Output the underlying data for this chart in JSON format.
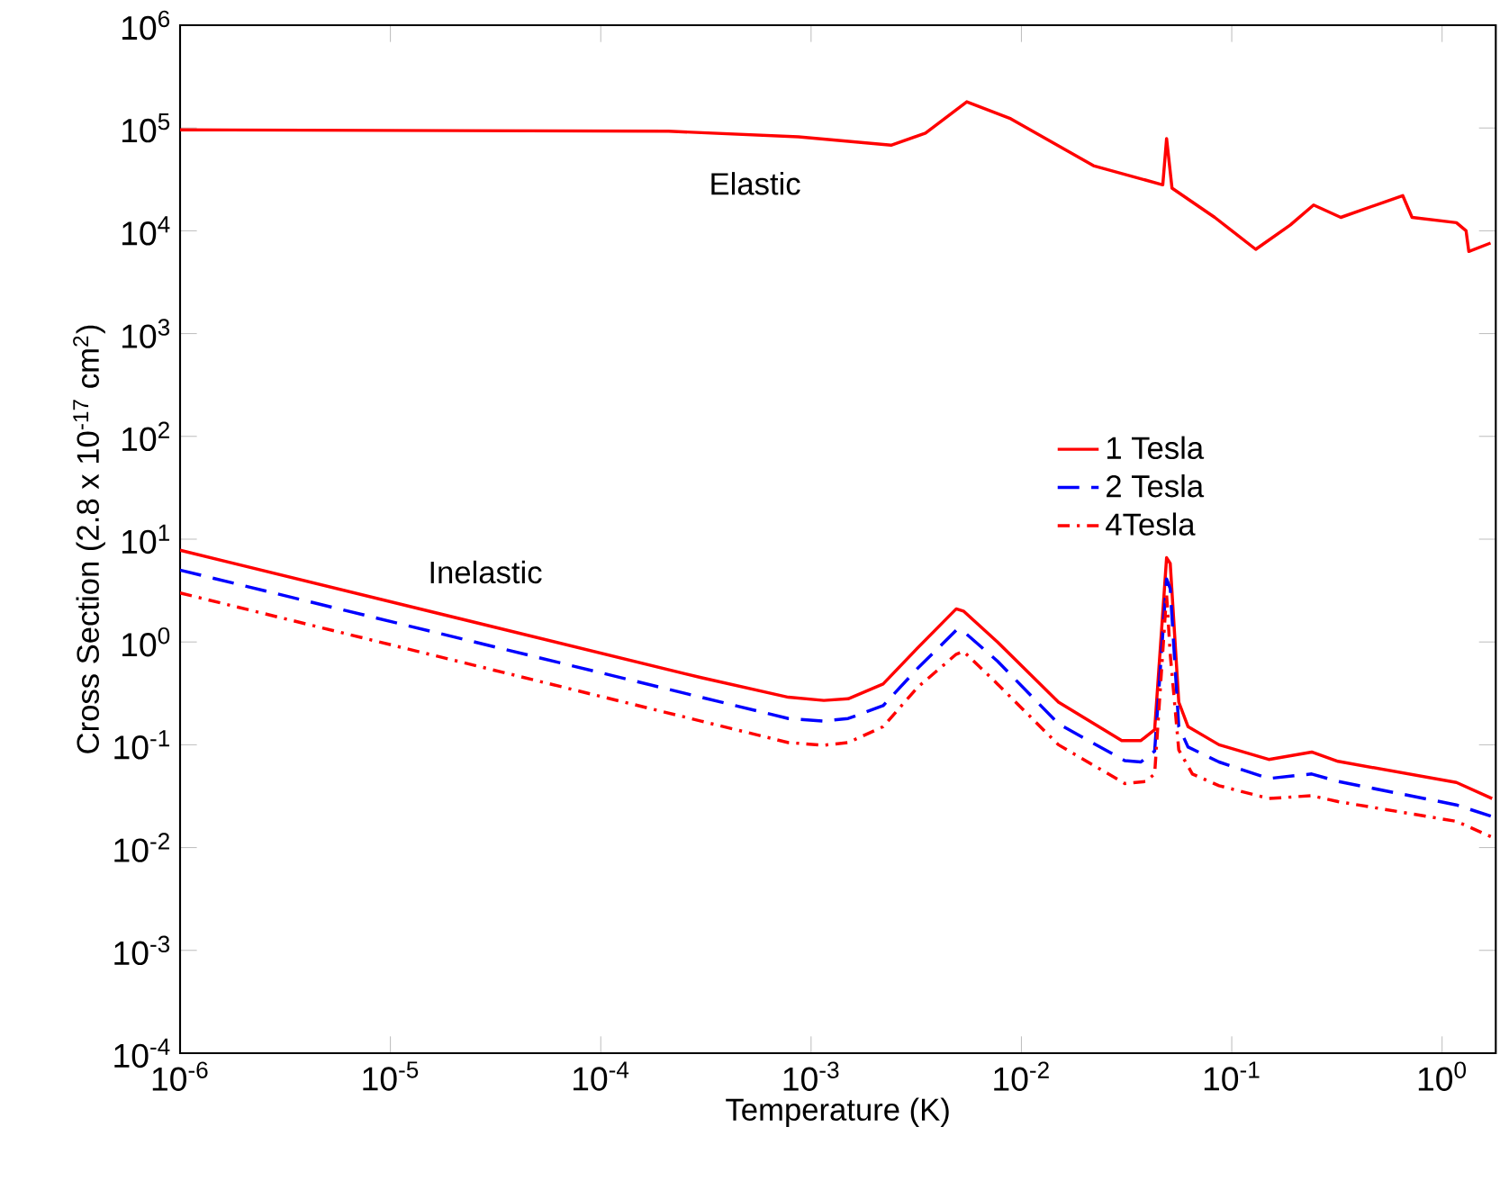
{
  "chart_data": {
    "type": "line",
    "xlabel": "Temperature (K)",
    "ylabel": "Cross Section (2.8 x 10$^{-17}$ cm$^{2}$)",
    "log": "xy",
    "xlim": [
      1e-06,
      1.8
    ],
    "ylim": [
      0.0001,
      1000000.0
    ],
    "xticks": [
      {
        "value": 1e-06,
        "label": "10$^{-6}$"
      },
      {
        "value": 1e-05,
        "label": "10$^{-5}$"
      },
      {
        "value": 0.0001,
        "label": "10$^{-4}$"
      },
      {
        "value": 0.001,
        "label": "10$^{-3}$"
      },
      {
        "value": 0.01,
        "label": "10$^{-2}$"
      },
      {
        "value": 0.1,
        "label": "10$^{-1}$"
      },
      {
        "value": 1,
        "label": "10$^{0}$"
      }
    ],
    "yticks": [
      {
        "value": 0.0001,
        "label": "10$^{-4}$"
      },
      {
        "value": 0.001,
        "label": "10$^{-3}$"
      },
      {
        "value": 0.01,
        "label": "10$^{-2}$"
      },
      {
        "value": 0.1,
        "label": "10$^{-1}$"
      },
      {
        "value": 1,
        "label": "10$^{0}$"
      },
      {
        "value": 10,
        "label": "10$^{1}$"
      },
      {
        "value": 100,
        "label": "10$^{2}$"
      },
      {
        "value": 1000,
        "label": "10$^{3}$"
      },
      {
        "value": 10000,
        "label": "10$^{4}$"
      },
      {
        "value": 100000,
        "label": "10$^{5}$"
      },
      {
        "value": 1000000,
        "label": "10$^{6}$"
      }
    ],
    "grid": false,
    "legend": "right",
    "marker": "none",
    "annotations": [
      "Elastic",
      "Inelastic"
    ],
    "series": [
      {
        "color": "#ff0000",
        "line_style": "solid",
        "x": [
          1e-06,
          0.00021,
          0.00087,
          0.0024,
          0.0035,
          0.0055,
          0.0089,
          0.022,
          0.047,
          0.049,
          0.052,
          0.083,
          0.13,
          0.19,
          0.245,
          0.33,
          0.53,
          0.65,
          0.72,
          1.17,
          1.3,
          1.34,
          1.7
        ],
        "values": [
          96000,
          93000,
          82000,
          68000,
          89000,
          180000,
          123000,
          43000,
          28000,
          79000,
          26000,
          13500,
          6600,
          11400,
          17800,
          13500,
          19000,
          22000,
          13500,
          12000,
          10000,
          6300,
          7600
        ]
      },
      {
        "name": "1 Tesla",
        "color": "#ff0000",
        "line_style": "solid",
        "x": [
          1e-06,
          0.0003,
          0.00078,
          0.00115,
          0.0015,
          0.0022,
          0.0032,
          0.0049,
          0.0053,
          0.0077,
          0.015,
          0.03,
          0.037,
          0.043,
          0.049,
          0.051,
          0.056,
          0.062,
          0.087,
          0.15,
          0.24,
          0.32,
          1.17,
          1.73
        ],
        "values": [
          7.8,
          0.45,
          0.29,
          0.27,
          0.28,
          0.39,
          0.87,
          2.1,
          2.0,
          1.0,
          0.26,
          0.11,
          0.11,
          0.14,
          6.6,
          5.8,
          0.26,
          0.15,
          0.1,
          0.072,
          0.085,
          0.069,
          0.043,
          0.03
        ]
      },
      {
        "name": "2 Tesla",
        "color": "#0000ff",
        "line_style": "dashed",
        "x": [
          1e-06,
          0.0003,
          0.00078,
          0.00115,
          0.0015,
          0.0022,
          0.0032,
          0.0049,
          0.0053,
          0.0077,
          0.015,
          0.031,
          0.037,
          0.043,
          0.049,
          0.051,
          0.056,
          0.062,
          0.087,
          0.15,
          0.24,
          0.32,
          1.17,
          1.73
        ],
        "values": [
          5.0,
          0.29,
          0.18,
          0.17,
          0.18,
          0.24,
          0.55,
          1.3,
          1.27,
          0.65,
          0.16,
          0.07,
          0.068,
          0.087,
          4.1,
          3.3,
          0.15,
          0.095,
          0.068,
          0.047,
          0.052,
          0.044,
          0.026,
          0.02
        ]
      },
      {
        "name": "4Tesla",
        "color": "#ff0000",
        "line_style": "dashdot",
        "x": [
          1e-06,
          0.0003,
          0.00078,
          0.00115,
          0.0015,
          0.0022,
          0.0032,
          0.0049,
          0.0053,
          0.0077,
          0.015,
          0.031,
          0.039,
          0.043,
          0.049,
          0.051,
          0.056,
          0.065,
          0.087,
          0.15,
          0.24,
          0.32,
          1.17,
          1.73
        ],
        "values": [
          3.0,
          0.17,
          0.105,
          0.099,
          0.105,
          0.15,
          0.36,
          0.76,
          0.81,
          0.39,
          0.1,
          0.042,
          0.044,
          0.052,
          2.9,
          0.76,
          0.089,
          0.052,
          0.04,
          0.03,
          0.032,
          0.028,
          0.018,
          0.0126
        ]
      }
    ]
  }
}
